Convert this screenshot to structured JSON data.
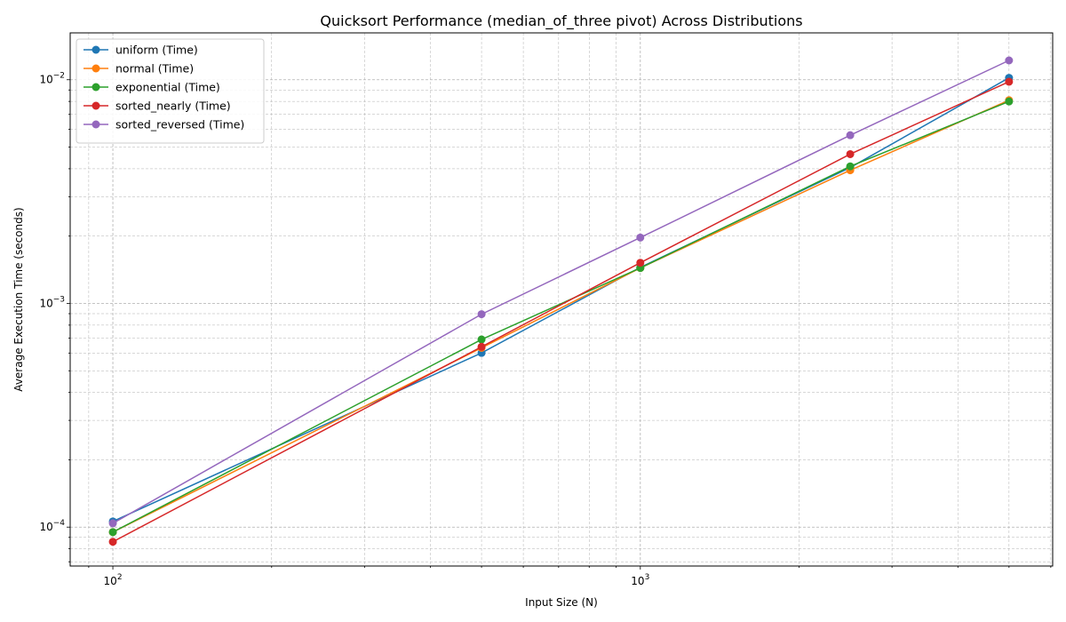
{
  "chart_data": {
    "type": "line",
    "title": "Quicksort Performance (median_of_three pivot) Across Distributions",
    "xlabel": "Input Size (N)",
    "ylabel": "Average Execution Time (seconds)",
    "xscale": "log",
    "yscale": "log",
    "xlim": [
      83,
      6050
    ],
    "ylim": [
      6.7e-05,
      0.0162
    ],
    "x": [
      100,
      500,
      1000,
      2500,
      5000
    ],
    "x_ticks": [
      {
        "value": 100,
        "base": "10",
        "exp": "2"
      },
      {
        "value": 1000,
        "base": "10",
        "exp": "3"
      }
    ],
    "y_ticks": [
      {
        "value": 0.0001,
        "base": "10",
        "exp": "−4"
      },
      {
        "value": 0.001,
        "base": "10",
        "exp": "−3"
      },
      {
        "value": 0.01,
        "base": "10",
        "exp": "−2"
      }
    ],
    "grid": true,
    "legend_position": "top-left",
    "series": [
      {
        "name": "uniform (Time)",
        "color": "#1f77b4",
        "values": [
          0.000106,
          0.000601,
          0.00145,
          0.00405,
          0.0102
        ]
      },
      {
        "name": "normal (Time)",
        "color": "#ff7f0e",
        "values": [
          9.5e-05,
          0.000633,
          0.00144,
          0.00394,
          0.0081
        ]
      },
      {
        "name": "exponential (Time)",
        "color": "#2ca02c",
        "values": [
          9.5e-05,
          0.00069,
          0.00144,
          0.0041,
          0.008
        ]
      },
      {
        "name": "sorted_nearly (Time)",
        "color": "#d62728",
        "values": [
          8.6e-05,
          0.00064,
          0.00152,
          0.00465,
          0.0098
        ]
      },
      {
        "name": "sorted_reversed (Time)",
        "color": "#9467bd",
        "values": [
          0.000104,
          0.000895,
          0.00197,
          0.00565,
          0.0122
        ]
      }
    ]
  }
}
